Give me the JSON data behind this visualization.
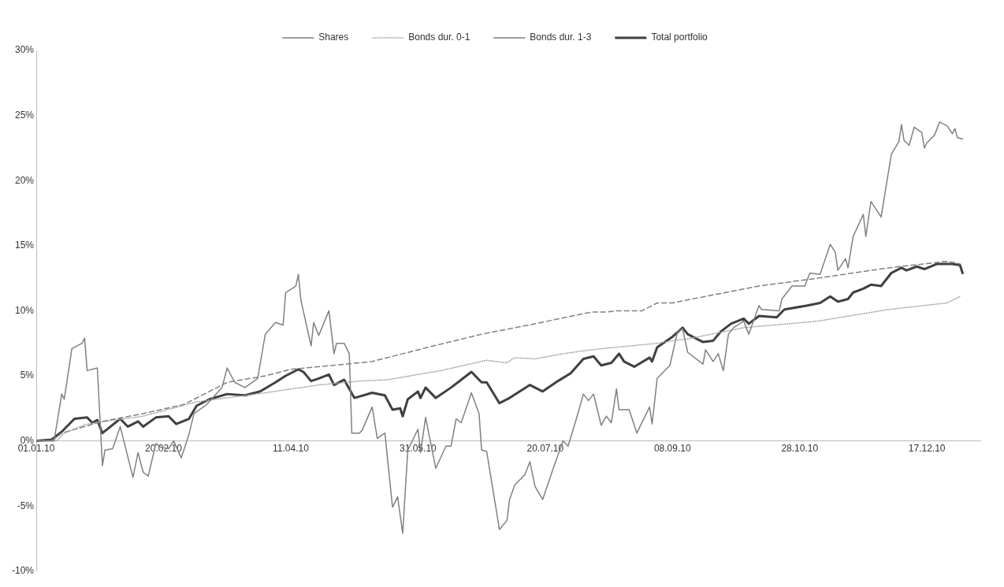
{
  "chart_data": {
    "type": "line",
    "xlim": [
      "2010-01-01",
      "2011-01-07"
    ],
    "ylim": [
      -10,
      30
    ],
    "xticks": [
      {
        "value": "2010-01-01",
        "label": "01.01.10"
      },
      {
        "value": "2010-02-20",
        "label": "20.02.10"
      },
      {
        "value": "2010-04-11",
        "label": "11.04.10"
      },
      {
        "value": "2010-05-31",
        "label": "31.05.10"
      },
      {
        "value": "2010-07-20",
        "label": "20.07.10"
      },
      {
        "value": "2010-09-08",
        "label": "08.09.10"
      },
      {
        "value": "2010-10-28",
        "label": "28.10.10"
      },
      {
        "value": "2010-12-17",
        "label": "17.12.10"
      }
    ],
    "yticks": [
      {
        "value": -10,
        "label": "-10%"
      },
      {
        "value": -5,
        "label": "-5%"
      },
      {
        "value": 0,
        "label": "0%"
      },
      {
        "value": 5,
        "label": "5%"
      },
      {
        "value": 10,
        "label": "10%"
      },
      {
        "value": 15,
        "label": "15%"
      },
      {
        "value": 20,
        "label": "20%"
      },
      {
        "value": 25,
        "label": "25%"
      },
      {
        "value": 30,
        "label": "30%"
      }
    ],
    "grid": false,
    "legend": "top",
    "marker": "none",
    "series": [
      {
        "name": "Shares",
        "color": "#808080",
        "line_style": "solid",
        "x": [
          "2010-01-01",
          "2010-01-08",
          "2010-01-11",
          "2010-01-12",
          "2010-01-15",
          "2010-01-19",
          "2010-01-20",
          "2010-01-21",
          "2010-01-25",
          "2010-01-27",
          "2010-01-28",
          "2010-01-31",
          "2010-02-03",
          "2010-02-08",
          "2010-02-10",
          "2010-02-12",
          "2010-02-14",
          "2010-02-17",
          "2010-02-19",
          "2010-02-22",
          "2010-02-24",
          "2010-02-27",
          "2010-03-02",
          "2010-03-04",
          "2010-03-09",
          "2010-03-15",
          "2010-03-17",
          "2010-03-20",
          "2010-03-24",
          "2010-03-29",
          "2010-04-01",
          "2010-04-05",
          "2010-04-08",
          "2010-04-09",
          "2010-04-13",
          "2010-04-14",
          "2010-04-15",
          "2010-04-19",
          "2010-04-20",
          "2010-04-22",
          "2010-04-26",
          "2010-04-28",
          "2010-04-29",
          "2010-05-02",
          "2010-05-04",
          "2010-05-05",
          "2010-05-08",
          "2010-05-09",
          "2010-05-13",
          "2010-05-15",
          "2010-05-18",
          "2010-05-21",
          "2010-05-23",
          "2010-05-25",
          "2010-05-27",
          "2010-05-31",
          "2010-06-01",
          "2010-06-03",
          "2010-06-07",
          "2010-06-11",
          "2010-06-13",
          "2010-06-15",
          "2010-06-17",
          "2010-06-21",
          "2010-06-24",
          "2010-06-25",
          "2010-06-27",
          "2010-07-02",
          "2010-07-05",
          "2010-07-06",
          "2010-07-08",
          "2010-07-12",
          "2010-07-14",
          "2010-07-16",
          "2010-07-19",
          "2010-07-23",
          "2010-07-27",
          "2010-07-29",
          "2010-08-02",
          "2010-08-04",
          "2010-08-06",
          "2010-08-08",
          "2010-08-11",
          "2010-08-13",
          "2010-08-15",
          "2010-08-17",
          "2010-08-18",
          "2010-08-22",
          "2010-08-25",
          "2010-08-30",
          "2010-08-31",
          "2010-09-02",
          "2010-09-07",
          "2010-09-10",
          "2010-09-12",
          "2010-09-14",
          "2010-09-20",
          "2010-09-21",
          "2010-09-24",
          "2010-09-26",
          "2010-09-28",
          "2010-09-30",
          "2010-10-02",
          "2010-10-06",
          "2010-10-08",
          "2010-10-12",
          "2010-10-13",
          "2010-10-20",
          "2010-10-21",
          "2010-10-25",
          "2010-10-30",
          "2010-11-01",
          "2010-11-05",
          "2010-11-09",
          "2010-11-11",
          "2010-11-12",
          "2010-11-15",
          "2010-11-16",
          "2010-11-18",
          "2010-11-22",
          "2010-11-23",
          "2010-11-25",
          "2010-11-29",
          "2010-12-03",
          "2010-12-06",
          "2010-12-07",
          "2010-12-08",
          "2010-12-10",
          "2010-12-12",
          "2010-12-15",
          "2010-12-16",
          "2010-12-17",
          "2010-12-20",
          "2010-12-22",
          "2010-12-25",
          "2010-12-27",
          "2010-12-28",
          "2010-12-29",
          "2010-12-31"
        ],
        "values": [
          0,
          0,
          3.6,
          3.2,
          7.1,
          7.5,
          7.9,
          5.4,
          5.6,
          -1.9,
          -0.7,
          -0.6,
          1.1,
          -2.8,
          -0.9,
          -2.4,
          -2.7,
          -0.2,
          -0.5,
          -0.6,
          0,
          -1.3,
          0.5,
          2.1,
          2.8,
          4.1,
          5.6,
          4.5,
          4.1,
          4.8,
          8.2,
          9.1,
          8.9,
          11.4,
          11.9,
          12.8,
          10.8,
          7.3,
          9.1,
          8.1,
          10,
          6.7,
          7.5,
          7.5,
          6.7,
          0.6,
          0.6,
          0.8,
          2.6,
          0.2,
          0.6,
          -5.1,
          -4.3,
          -7.1,
          -0.7,
          0.9,
          -0.9,
          1.8,
          -2.1,
          -0.4,
          -0.4,
          1.7,
          1.4,
          3.7,
          2.1,
          -0.7,
          -0.8,
          -6.8,
          -6.1,
          -4.5,
          -3.4,
          -2.6,
          -1.6,
          -3.5,
          -4.5,
          -2.2,
          0,
          -0.4,
          2.2,
          3.6,
          3.1,
          3.6,
          1.2,
          1.9,
          1.4,
          4,
          2.4,
          2.4,
          0.6,
          2.6,
          1.3,
          4.8,
          5.8,
          8.4,
          8.6,
          6.8,
          5.9,
          7,
          6.1,
          6.7,
          5.4,
          8.2,
          8.7,
          9.2,
          8.2,
          10.4,
          10.1,
          10,
          10.9,
          11.9,
          11.9,
          12.9,
          12.8,
          15.1,
          14.5,
          13.1,
          14,
          13.3,
          15.7,
          17.4,
          15.7,
          18.4,
          17.2,
          22,
          23,
          24.3,
          23.1,
          22.7,
          24.1,
          23.7,
          22.5,
          22.9,
          23.5,
          24.5,
          24.2,
          23.6,
          24,
          23.3,
          23.2
        ]
      },
      {
        "name": "Bonds dur. 0-1",
        "color": "#a6a6a6",
        "line_style": "dotted",
        "x": [
          "2010-01-01",
          "2010-01-09",
          "2010-01-12",
          "2010-01-21",
          "2010-02-12",
          "2010-03-05",
          "2010-04-01",
          "2010-04-22",
          "2010-05-08",
          "2010-05-19",
          "2010-06-09",
          "2010-06-27",
          "2010-07-05",
          "2010-07-08",
          "2010-07-16",
          "2010-07-27",
          "2010-08-07",
          "2010-08-17",
          "2010-09-02",
          "2010-09-08",
          "2010-09-13",
          "2010-10-06",
          "2010-11-04",
          "2010-12-02",
          "2010-12-25",
          "2010-12-30"
        ],
        "values": [
          0,
          0,
          0.6,
          1.3,
          1.9,
          3,
          3.7,
          4.3,
          4.6,
          4.7,
          5.4,
          6.2,
          6,
          6.4,
          6.3,
          6.7,
          7,
          7.2,
          7.5,
          7.7,
          7.8,
          8.7,
          9.2,
          10.1,
          10.6,
          11.1
        ]
      },
      {
        "name": "Bonds dur. 1-3",
        "color": "#808080",
        "line_style": "dashed",
        "x": [
          "2010-01-01",
          "2010-01-07",
          "2010-01-11",
          "2010-01-27",
          "2010-02-12",
          "2010-02-28",
          "2010-03-17",
          "2010-04-01",
          "2010-04-11",
          "2010-05-08",
          "2010-05-13",
          "2010-06-04",
          "2010-06-25",
          "2010-07-16",
          "2010-08-07",
          "2010-08-13",
          "2010-08-17",
          "2010-08-24",
          "2010-08-27",
          "2010-09-02",
          "2010-09-08",
          "2010-09-13",
          "2010-10-12",
          "2010-11-04",
          "2010-12-02",
          "2010-12-25",
          "2010-12-30"
        ],
        "values": [
          0,
          0,
          0.6,
          1.5,
          2.1,
          2.8,
          4.5,
          5,
          5.5,
          6,
          6.1,
          7.2,
          8.2,
          9,
          9.9,
          9.9,
          10,
          10,
          10,
          10.6,
          10.6,
          10.8,
          11.9,
          12.5,
          13.3,
          13.8,
          13.6
        ]
      },
      {
        "name": "Total portfolio",
        "color": "#404040",
        "line_style": "solid",
        "x": [
          "2010-01-01",
          "2010-01-07",
          "2010-01-11",
          "2010-01-16",
          "2010-01-21",
          "2010-01-23",
          "2010-01-25",
          "2010-01-27",
          "2010-02-03",
          "2010-02-06",
          "2010-02-10",
          "2010-02-12",
          "2010-02-17",
          "2010-02-22",
          "2010-02-25",
          "2010-03-02",
          "2010-03-05",
          "2010-03-10",
          "2010-03-17",
          "2010-03-24",
          "2010-03-30",
          "2010-04-05",
          "2010-04-09",
          "2010-04-14",
          "2010-04-16",
          "2010-04-19",
          "2010-04-22",
          "2010-04-26",
          "2010-04-28",
          "2010-05-02",
          "2010-05-06",
          "2010-05-13",
          "2010-05-18",
          "2010-05-21",
          "2010-05-24",
          "2010-05-25",
          "2010-05-27",
          "2010-05-31",
          "2010-06-01",
          "2010-06-03",
          "2010-06-07",
          "2010-06-13",
          "2010-06-17",
          "2010-06-21",
          "2010-06-25",
          "2010-06-27",
          "2010-07-02",
          "2010-07-06",
          "2010-07-14",
          "2010-07-19",
          "2010-07-25",
          "2010-07-30",
          "2010-08-04",
          "2010-08-08",
          "2010-08-11",
          "2010-08-15",
          "2010-08-18",
          "2010-08-20",
          "2010-08-24",
          "2010-08-30",
          "2010-08-31",
          "2010-09-02",
          "2010-09-08",
          "2010-09-12",
          "2010-09-14",
          "2010-09-20",
          "2010-09-24",
          "2010-09-27",
          "2010-10-01",
          "2010-10-06",
          "2010-10-08",
          "2010-10-12",
          "2010-10-19",
          "2010-10-22",
          "2010-10-31",
          "2010-11-05",
          "2010-11-09",
          "2010-11-12",
          "2010-11-16",
          "2010-11-18",
          "2010-11-22",
          "2010-11-25",
          "2010-11-29",
          "2010-12-03",
          "2010-12-07",
          "2010-12-09",
          "2010-12-13",
          "2010-12-16",
          "2010-12-21",
          "2010-12-27",
          "2010-12-30",
          "2010-12-31"
        ],
        "values": [
          0,
          0.1,
          0.7,
          1.7,
          1.8,
          1.4,
          1.6,
          0.6,
          1.7,
          1.1,
          1.5,
          1.1,
          1.8,
          1.9,
          1.3,
          1.7,
          2.7,
          3.2,
          3.6,
          3.5,
          3.8,
          4.5,
          5,
          5.5,
          5.3,
          4.6,
          4.8,
          5.1,
          4.3,
          4.7,
          3.3,
          3.7,
          3.5,
          2.4,
          2.5,
          1.9,
          3.2,
          3.8,
          3.3,
          4.1,
          3.3,
          4.1,
          4.7,
          5.3,
          4.5,
          4.5,
          2.9,
          3.3,
          4.3,
          3.8,
          4.6,
          5.2,
          6.3,
          6.5,
          5.8,
          6,
          6.7,
          6.1,
          5.7,
          6.4,
          6.1,
          7.2,
          8,
          8.7,
          8.2,
          7.6,
          7.7,
          8.4,
          9,
          9.4,
          9,
          9.6,
          9.5,
          10.1,
          10.4,
          10.6,
          11.1,
          10.7,
          10.9,
          11.4,
          11.7,
          12,
          11.9,
          12.9,
          13.3,
          13.1,
          13.4,
          13.2,
          13.6,
          13.6,
          13.5,
          12.9
        ]
      }
    ]
  }
}
